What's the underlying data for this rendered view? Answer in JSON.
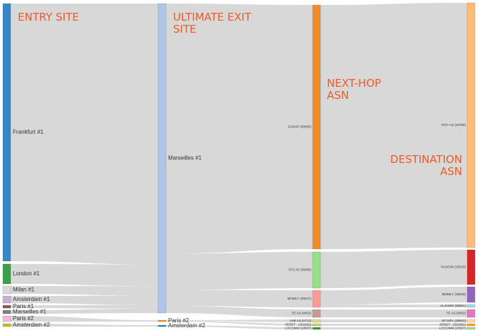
{
  "columns": [
    {
      "key": "entry",
      "title": [
        "ENTRY SITE"
      ]
    },
    {
      "key": "exit",
      "title": [
        "ULTIMATE EXIT",
        "SITE"
      ]
    },
    {
      "key": "nexthop",
      "title": [
        "NEXT-HOP",
        "ASN"
      ]
    },
    {
      "key": "dest",
      "title": [
        "DESTINATION",
        "ASN"
      ]
    }
  ],
  "nodes": {
    "entry": [
      {
        "id": "frankfurt1",
        "label": "Frankfurt #1",
        "color": "#3a86c0"
      },
      {
        "id": "london1",
        "label": "London #1",
        "color": "#3ca145"
      },
      {
        "id": "milan1",
        "label": "Milan #1",
        "color": "#d9d9d9"
      },
      {
        "id": "amsterdam1",
        "label": "Amsterdam #1",
        "color": "#c5b0d5"
      },
      {
        "id": "paris1",
        "label": "Paris #1",
        "color": "#8c564b"
      },
      {
        "id": "marseilles1e",
        "label": "Marseilles #1",
        "color": "#7f7f7f"
      },
      {
        "id": "paris2e",
        "label": "Paris #2",
        "color": "#f7b6d2"
      },
      {
        "id": "amsterdam2e",
        "label": "Amsterdam #2",
        "color": "#bcbd22"
      }
    ],
    "exit": [
      {
        "id": "marseilles1",
        "label": "Marseilles #1",
        "color": "#aec7e8"
      },
      {
        "id": "paris2",
        "label": "Paris #2",
        "color": "#ff7f0e"
      },
      {
        "id": "amsterdam2",
        "label": "Amsterdam #2",
        "color": "#1f77b4"
      }
    ],
    "nexthop": [
      {
        "id": "zain",
        "label": "ZAINSP (59605)",
        "color": "#f28c28"
      },
      {
        "id": "stc",
        "label": "STC-IO (39386)",
        "color": "#98df8a"
      },
      {
        "id": "mobily_nh",
        "label": "MOBILY (48237)",
        "color": "#ff9896"
      },
      {
        "id": "te_nh",
        "label": "TE-AS (8452)",
        "color": "#c49c94"
      },
      {
        "id": "iam",
        "label": "IAM-AS (6713)",
        "color": "#dbdb8d"
      },
      {
        "id": "senet_nh",
        "label": "SENET - (202952)",
        "color": "#e0c080"
      },
      {
        "id": "locomm_nh",
        "label": "LOCOMM (10567)",
        "color": "#2ca02c"
      }
    ],
    "dest": [
      {
        "id": "mtc",
        "label": "MTC-AS (49759)",
        "color": "#ffbb78"
      },
      {
        "id": "saudi",
        "label": "SAUDINI (25019)",
        "color": "#d62728"
      },
      {
        "id": "mobily_d",
        "label": "MOBILY (35819)",
        "color": "#9467bd"
      },
      {
        "id": "aljawwal",
        "label": "ALJAWW (39891)",
        "color": "#9edae5"
      },
      {
        "id": "te_d",
        "label": "TE-AS (8452)",
        "color": "#e377c2"
      },
      {
        "id": "mtmpl",
        "label": "MT-MPL (36903)",
        "color": "#ffd8a8"
      },
      {
        "id": "senet_d",
        "label": "SENET - (202952)",
        "color": "#ff9f1c"
      },
      {
        "id": "locomm_d",
        "label": "LOCOMM (10567)",
        "color": "#98df8a"
      }
    ]
  },
  "links": [
    {
      "from": "frankfurt1",
      "to": "marseilles1",
      "value": 360
    },
    {
      "from": "london1",
      "to": "marseilles1",
      "value": 30
    },
    {
      "from": "milan1",
      "to": "marseilles1",
      "value": 13
    },
    {
      "from": "amsterdam1",
      "to": "marseilles1",
      "value": 13
    },
    {
      "from": "paris1",
      "to": "marseilles1",
      "value": 5
    },
    {
      "from": "marseilles1e",
      "to": "marseilles1",
      "value": 6
    },
    {
      "from": "paris2e",
      "to": "paris2",
      "value": 8
    },
    {
      "from": "amsterdam2e",
      "to": "amsterdam2",
      "value": 4
    },
    {
      "from": "marseilles1",
      "to": "zain",
      "value": 345
    },
    {
      "from": "marseilles1",
      "to": "stc",
      "value": 50
    },
    {
      "from": "marseilles1",
      "to": "mobily_nh",
      "value": 22
    },
    {
      "from": "marseilles1",
      "to": "te_nh",
      "value": 10
    },
    {
      "from": "paris2",
      "to": "iam",
      "value": 4
    },
    {
      "from": "paris2",
      "to": "senet_nh",
      "value": 4
    },
    {
      "from": "amsterdam2",
      "to": "locomm_nh",
      "value": 4
    },
    {
      "from": "zain",
      "to": "mtc",
      "value": 345
    },
    {
      "from": "stc",
      "to": "saudi",
      "value": 50
    },
    {
      "from": "mobily_nh",
      "to": "mobily_d",
      "value": 22
    },
    {
      "from": "mobily_nh",
      "to": "aljawwal",
      "value": 4
    },
    {
      "from": "te_nh",
      "to": "te_d",
      "value": 10
    },
    {
      "from": "iam",
      "to": "mtmpl",
      "value": 4
    },
    {
      "from": "senet_nh",
      "to": "senet_d",
      "value": 4
    },
    {
      "from": "locomm_nh",
      "to": "locomm_d",
      "value": 4
    }
  ]
}
